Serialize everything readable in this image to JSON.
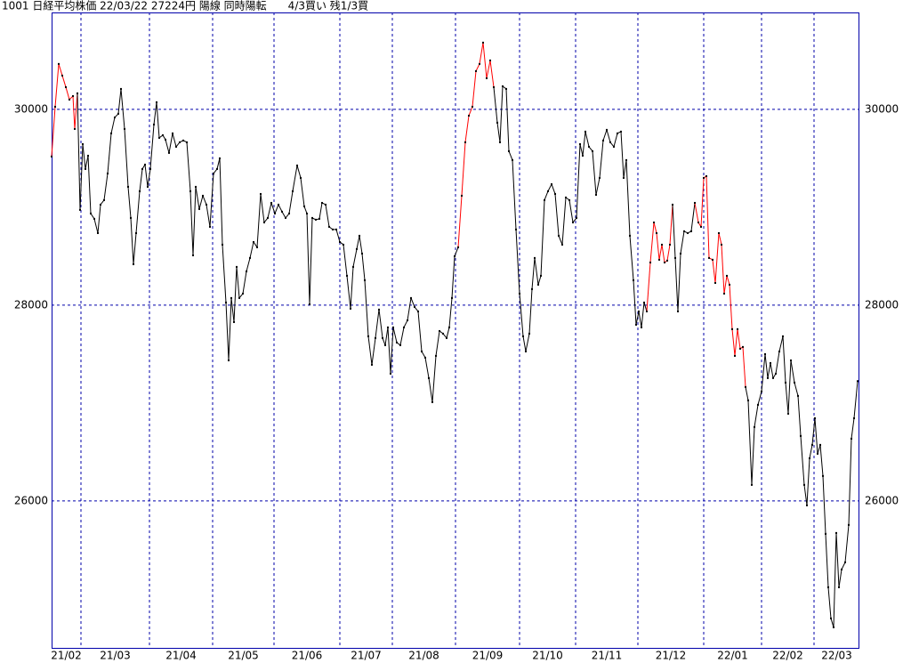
{
  "chart_data": {
    "type": "line",
    "title": "1001 日経平均株価 22/03/22 27224円 陽線 同時陽転　　4/3買い 残1/3買",
    "xlim": [
      0,
      908
    ],
    "xticks": [
      {
        "value": 0,
        "label": "21/02"
      },
      {
        "value": 33,
        "label": "21/03"
      },
      {
        "value": 110,
        "label": "21/04"
      },
      {
        "value": 181,
        "label": "21/05"
      },
      {
        "value": 250,
        "label": "21/06"
      },
      {
        "value": 324,
        "label": "21/07"
      },
      {
        "value": 383,
        "label": "21/08"
      },
      {
        "value": 454,
        "label": "21/09"
      },
      {
        "value": 526,
        "label": "21/10"
      },
      {
        "value": 589,
        "label": "21/11"
      },
      {
        "value": 659,
        "label": "21/12"
      },
      {
        "value": 733,
        "label": "22/01"
      },
      {
        "value": 798,
        "label": "22/02"
      },
      {
        "value": 857,
        "label": "22/03"
      }
    ],
    "ylim": [
      24490,
      30990
    ],
    "yticks": [
      26000,
      28000,
      30000
    ],
    "grid": true,
    "series": [
      {
        "color": "#000000",
        "x": [
          0,
          4,
          8,
          12,
          16,
          20,
          24,
          26,
          29,
          32,
          35,
          38,
          41,
          44,
          48,
          52,
          55,
          59,
          63,
          67,
          71,
          75,
          78,
          82,
          86,
          89,
          92,
          95,
          99,
          102,
          105,
          108,
          111,
          115,
          118,
          121,
          125,
          128,
          132,
          136,
          140,
          144,
          148,
          152,
          156,
          159,
          162,
          166,
          170,
          174,
          178,
          182,
          186,
          189,
          192,
          196,
          199,
          202,
          205,
          208,
          211,
          215,
          219,
          223,
          227,
          231,
          235,
          239,
          243,
          247,
          251,
          255,
          259,
          263,
          267,
          271,
          276,
          280,
          284,
          287,
          290,
          293,
          297,
          301,
          304,
          308,
          312,
          316,
          320,
          324,
          328,
          332,
          336,
          339,
          343,
          346,
          349,
          352,
          356,
          360,
          364,
          368,
          372,
          375,
          378,
          381,
          384,
          388,
          392,
          396,
          400,
          404,
          408,
          412,
          416,
          420,
          424,
          428,
          432,
          436,
          440,
          444,
          447,
          450,
          453,
          457,
          461,
          465,
          469,
          473,
          477,
          481,
          485,
          489,
          493,
          497,
          501,
          504,
          507,
          511,
          514,
          518,
          522,
          526,
          530,
          533,
          537,
          540,
          543,
          547,
          550,
          554,
          558,
          562,
          566,
          570,
          574,
          578,
          582,
          586,
          590,
          594,
          597,
          600,
          604,
          608,
          612,
          616,
          620,
          624,
          628,
          632,
          636,
          640,
          643,
          646,
          650,
          654,
          657,
          660,
          663,
          666,
          669,
          673,
          677,
          680,
          683,
          686,
          689,
          692,
          695,
          698,
          701,
          704,
          707,
          711,
          715,
          719,
          723,
          727,
          730,
          733,
          736,
          739,
          743,
          746,
          750,
          753,
          756,
          759,
          762,
          765,
          768,
          771,
          774,
          777,
          780,
          783,
          787,
          790,
          794,
          798,
          802,
          805,
          808,
          811,
          814,
          818,
          822,
          825,
          828,
          831,
          835,
          839,
          842,
          846,
          849,
          852,
          855,
          858,
          861,
          864,
          867,
          870,
          873,
          876,
          879,
          882,
          885,
          888,
          892,
          896,
          899,
          902,
          906
        ],
        "values": [
          29518,
          30027,
          30464,
          30345,
          30227,
          30100,
          30136,
          29800,
          30164,
          28973,
          29645,
          29391,
          29527,
          28936,
          28882,
          28736,
          29027,
          29073,
          29345,
          29755,
          29918,
          29955,
          30209,
          29800,
          29209,
          28891,
          28418,
          28736,
          29164,
          29391,
          29436,
          29209,
          29391,
          29845,
          30073,
          29709,
          29736,
          29691,
          29555,
          29755,
          29618,
          29664,
          29682,
          29664,
          29164,
          28509,
          29209,
          28982,
          29118,
          29027,
          28800,
          29345,
          29391,
          29500,
          28618,
          28027,
          27436,
          28073,
          27827,
          28391,
          28073,
          28118,
          28345,
          28482,
          28645,
          28591,
          29136,
          28845,
          28891,
          29045,
          28936,
          29027,
          28955,
          28891,
          28936,
          29164,
          29427,
          29300,
          29009,
          28936,
          28009,
          28891,
          28873,
          28882,
          29045,
          29027,
          28800,
          28773,
          28773,
          28645,
          28618,
          28300,
          27964,
          28391,
          28573,
          28709,
          28527,
          28255,
          27682,
          27391,
          27664,
          27955,
          27664,
          27591,
          27773,
          27300,
          27773,
          27618,
          27591,
          27773,
          27845,
          28073,
          27982,
          27936,
          27527,
          27464,
          27255,
          27009,
          27482,
          27736,
          27709,
          27664,
          27773,
          28073,
          28500,
          28591,
          29118,
          29664,
          29936,
          30027,
          30391,
          30464,
          30682,
          30318,
          30500,
          30227,
          29864,
          29664,
          30236,
          30209,
          29573,
          29482,
          28773,
          28118,
          27682,
          27527,
          27709,
          28164,
          28482,
          28209,
          28300,
          29073,
          29164,
          29236,
          29136,
          28709,
          28618,
          29100,
          29073,
          28845,
          28891,
          29645,
          29527,
          29773,
          29618,
          29573,
          29127,
          29300,
          29682,
          29791,
          29664,
          29618,
          29755,
          29773,
          29300,
          29482,
          28709,
          28255,
          27800,
          27936,
          27773,
          28027,
          27936,
          28436,
          28845,
          28736,
          28464,
          28618,
          28436,
          28455,
          28618,
          29027,
          28482,
          27936,
          28527,
          28755,
          28736,
          28755,
          29045,
          28845,
          28800,
          29300,
          29318,
          28482,
          28464,
          28227,
          28736,
          28618,
          28118,
          28300,
          28209,
          27755,
          27482,
          27755,
          27555,
          27573,
          27164,
          27027,
          26164,
          26755,
          26982,
          27118,
          27500,
          27255,
          27409,
          27255,
          27300,
          27527,
          27682,
          27209,
          26891,
          27436,
          27209,
          27073,
          26664,
          26164,
          25955,
          26436,
          26573,
          26845,
          26482,
          26573,
          26255,
          25664,
          25118,
          24800,
          24709,
          25673,
          25118,
          25300,
          25373,
          25755,
          26636,
          26845,
          27224
        ],
        "colors": [
          "#000",
          "#f00",
          "#f00",
          "#f00",
          "#f00",
          "#f00",
          "#f00",
          "#f00",
          "#f00",
          "#000",
          "#000",
          "#000",
          "#000",
          "#000",
          "#000",
          "#000",
          "#000",
          "#000",
          "#000",
          "#000",
          "#000",
          "#000",
          "#000",
          "#000",
          "#000",
          "#000",
          "#000",
          "#000",
          "#000",
          "#000",
          "#000",
          "#000",
          "#000",
          "#000",
          "#000",
          "#000",
          "#000",
          "#000",
          "#000",
          "#000",
          "#000",
          "#000",
          "#000",
          "#000",
          "#000",
          "#000",
          "#000",
          "#000",
          "#000",
          "#000",
          "#000",
          "#000",
          "#000",
          "#000",
          "#000",
          "#000",
          "#000",
          "#000",
          "#000",
          "#000",
          "#000",
          "#000",
          "#000",
          "#000",
          "#000",
          "#000",
          "#000",
          "#000",
          "#000",
          "#000",
          "#000",
          "#000",
          "#000",
          "#000",
          "#000",
          "#000",
          "#000",
          "#000",
          "#000",
          "#000",
          "#000",
          "#000",
          "#000",
          "#000",
          "#000",
          "#000",
          "#000",
          "#000",
          "#000",
          "#000",
          "#000",
          "#000",
          "#000",
          "#000",
          "#000",
          "#000",
          "#000",
          "#000",
          "#000",
          "#000",
          "#000",
          "#000",
          "#000",
          "#000",
          "#000",
          "#000",
          "#000",
          "#000",
          "#000",
          "#000",
          "#000",
          "#000",
          "#000",
          "#000",
          "#000",
          "#000",
          "#000",
          "#000",
          "#000",
          "#000",
          "#000",
          "#000",
          "#000",
          "#000",
          "#000",
          "#000",
          "#f00",
          "#f00",
          "#f00",
          "#f00",
          "#f00",
          "#f00",
          "#f00",
          "#f00",
          "#f00",
          "#f00",
          "#000",
          "#000",
          "#000",
          "#000",
          "#000",
          "#000",
          "#000",
          "#000",
          "#000",
          "#000",
          "#000",
          "#000",
          "#000",
          "#000",
          "#000",
          "#000",
          "#000",
          "#000",
          "#000",
          "#000",
          "#000",
          "#000",
          "#000",
          "#000",
          "#000",
          "#000",
          "#000",
          "#000",
          "#000",
          "#000",
          "#000",
          "#000",
          "#000",
          "#000",
          "#000",
          "#000",
          "#000",
          "#000",
          "#000",
          "#000",
          "#000",
          "#000",
          "#000",
          "#000",
          "#000",
          "#000",
          "#000",
          "#f00",
          "#f00",
          "#f00",
          "#f00",
          "#f00",
          "#f00",
          "#f00",
          "#f00",
          "#f00",
          "#000",
          "#000",
          "#000",
          "#000",
          "#000",
          "#000",
          "#000",
          "#f00",
          "#f00",
          "#f00",
          "#f00",
          "#f00",
          "#f00",
          "#f00",
          "#f00",
          "#f00",
          "#f00",
          "#f00",
          "#f00",
          "#f00",
          "#f00",
          "#f00",
          "#f00",
          "#f00",
          "#f00",
          "#000",
          "#000",
          "#000",
          "#000",
          "#000",
          "#000",
          "#000",
          "#000",
          "#000",
          "#000",
          "#000",
          "#000",
          "#000",
          "#000",
          "#000",
          "#000",
          "#000",
          "#000",
          "#000",
          "#000",
          "#000",
          "#000",
          "#000",
          "#000",
          "#000",
          "#000",
          "#000",
          "#000",
          "#000",
          "#000",
          "#000",
          "#000",
          "#000",
          "#000",
          "#000",
          "#000",
          "#000",
          "#000"
        ]
      }
    ],
    "frame_color": "#0000aa"
  }
}
